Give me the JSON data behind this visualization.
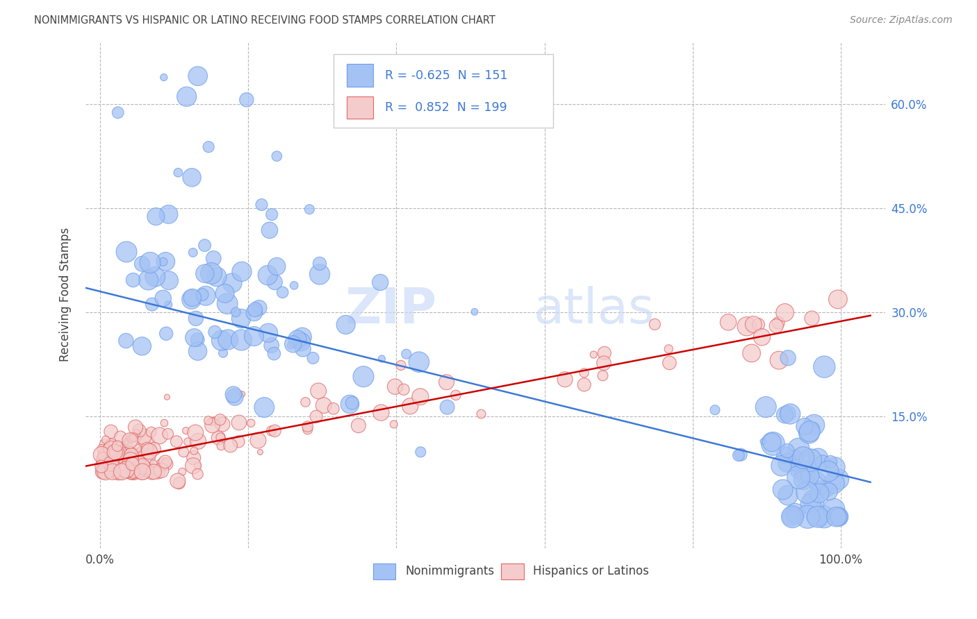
{
  "title": "NONIMMIGRANTS VS HISPANIC OR LATINO RECEIVING FOOD STAMPS CORRELATION CHART",
  "source": "Source: ZipAtlas.com",
  "xlabel_ticks_vals": [
    0.0,
    1.0
  ],
  "xlabel_ticks_labels": [
    "0.0%",
    "100.0%"
  ],
  "ylabel": "Receiving Food Stamps",
  "ytick_labels": [
    "60.0%",
    "45.0%",
    "30.0%",
    "15.0%"
  ],
  "ytick_values": [
    0.6,
    0.45,
    0.3,
    0.15
  ],
  "xlim": [
    -0.02,
    1.06
  ],
  "ylim": [
    -0.04,
    0.69
  ],
  "blue_R": "-0.625",
  "blue_N": "151",
  "pink_R": "0.852",
  "pink_N": "199",
  "blue_color": "#a4c2f4",
  "pink_color": "#f4cccc",
  "blue_fill_color": "#6d9eeb",
  "pink_fill_color": "#e06666",
  "blue_line_color": "#3c78d8",
  "pink_line_color": "#cc0000",
  "watermark_zip": "ZIP",
  "watermark_atlas": "atlas",
  "legend_label_blue": "Nonimmigrants",
  "legend_label_pink": "Hispanics or Latinos",
  "title_color": "#434343",
  "axis_label_color": "#434343",
  "tick_color": "#434343",
  "grid_color": "#b7b7b7",
  "blue_line_y0": 0.335,
  "blue_line_y1": 0.055,
  "pink_line_y0": 0.078,
  "pink_line_y1": 0.295
}
